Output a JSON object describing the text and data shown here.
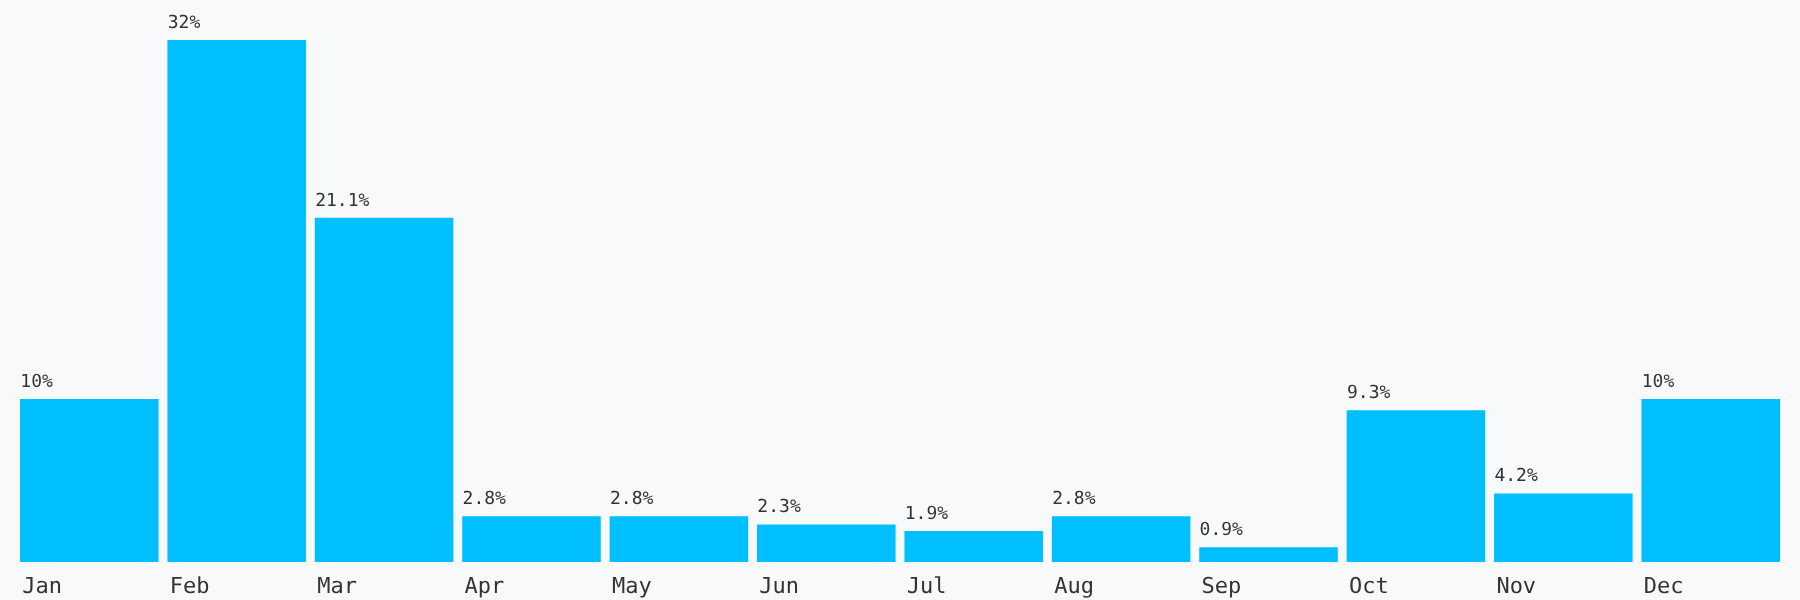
{
  "chart_data": {
    "type": "bar",
    "categories": [
      "Jan",
      "Feb",
      "Mar",
      "Apr",
      "May",
      "Jun",
      "Jul",
      "Aug",
      "Sep",
      "Oct",
      "Nov",
      "Dec"
    ],
    "values": [
      10,
      32,
      21.1,
      2.8,
      2.8,
      2.3,
      1.9,
      2.8,
      0.9,
      9.3,
      4.2,
      10
    ],
    "value_labels": [
      "10%",
      "32%",
      "21.1%",
      "2.8%",
      "2.8%",
      "2.3%",
      "1.9%",
      "2.8%",
      "0.9%",
      "9.3%",
      "4.2%",
      "10%"
    ],
    "color": "#00bfff",
    "grid": false
  }
}
